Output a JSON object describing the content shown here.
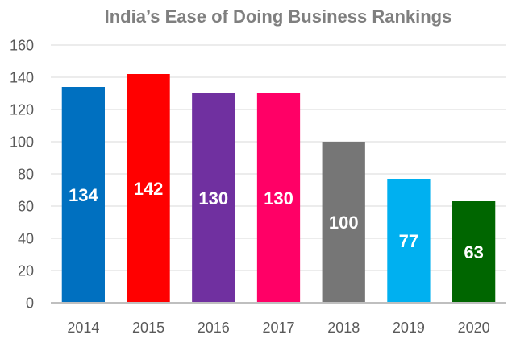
{
  "chart_data": {
    "type": "bar",
    "title": "India’s Ease of Doing Business Rankings",
    "xlabel": "",
    "ylabel": "",
    "categories": [
      "2014",
      "2015",
      "2016",
      "2017",
      "2018",
      "2019",
      "2020"
    ],
    "values": [
      134,
      142,
      130,
      130,
      100,
      77,
      63
    ],
    "data_labels": [
      "134",
      "142",
      "130",
      "130",
      "100",
      "77",
      "63"
    ],
    "bar_colors": [
      "#0070c0",
      "#ff0000",
      "#7030a0",
      "#ff0066",
      "#767676",
      "#00b0f0",
      "#006600"
    ],
    "ylim": [
      0,
      160
    ],
    "yticks": [
      0,
      20,
      40,
      60,
      80,
      100,
      120,
      140,
      160
    ],
    "ytick_labels": [
      "0",
      "20",
      "40",
      "60",
      "80",
      "100",
      "120",
      "140",
      "160"
    ],
    "grid": true,
    "legend": "none",
    "data_label_position": "inside-middle"
  }
}
